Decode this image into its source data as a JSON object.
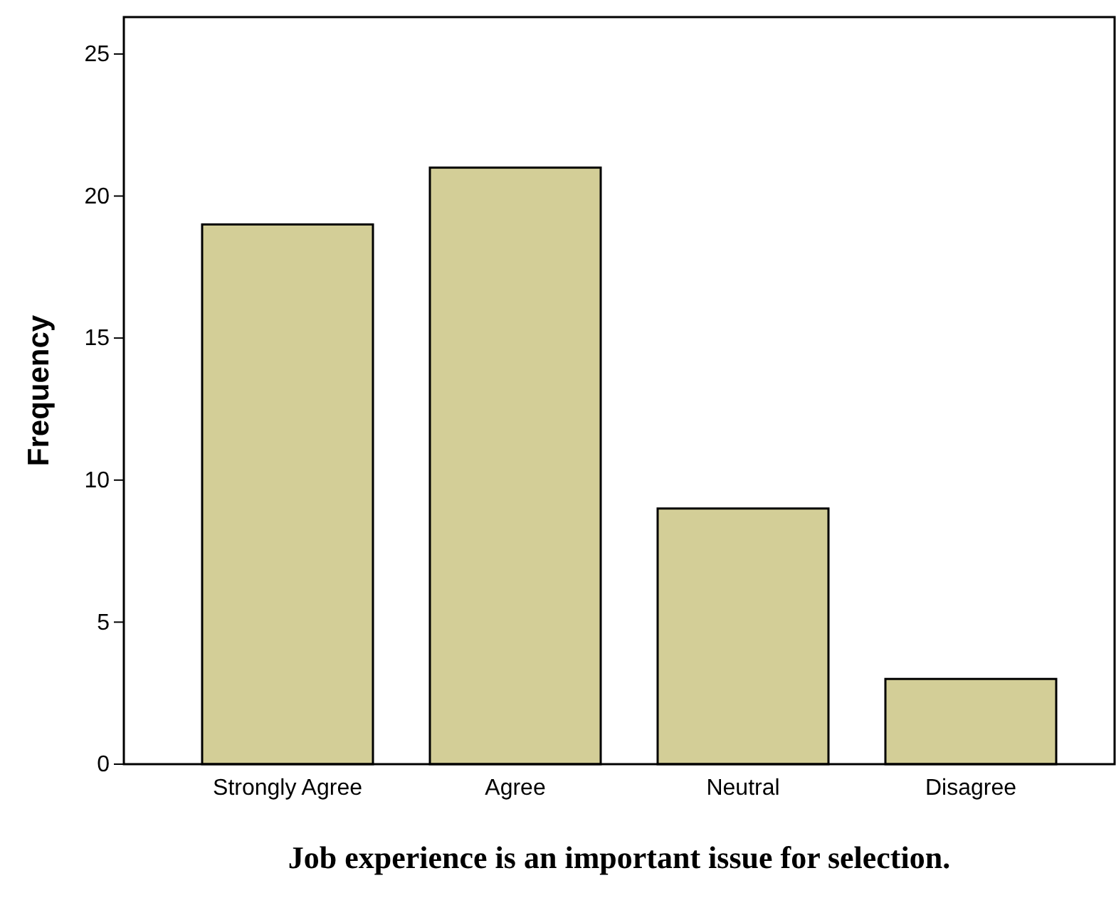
{
  "chart_data": {
    "type": "bar",
    "xlabel": "Job experience is an important issue for selection.",
    "ylabel": "Frequency",
    "categories": [
      "Strongly Agree",
      "Agree",
      "Neutral",
      "Disagree"
    ],
    "values": [
      19,
      21,
      9,
      3
    ],
    "color": "#d3ce97",
    "ylim": [
      0,
      26.3
    ],
    "yticks": [
      0,
      5,
      10,
      15,
      20,
      25
    ],
    "grid": false
  }
}
